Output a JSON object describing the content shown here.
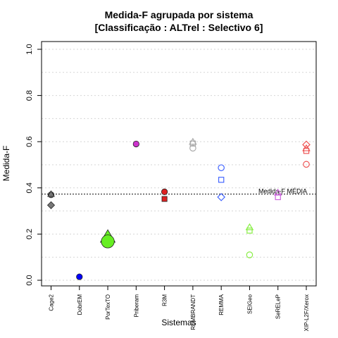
{
  "chart_data": {
    "type": "scatter",
    "title": "Medida-F agrupada por sistema",
    "subtitle": "[Classificação : ALTrel : Selectivo 6]",
    "xlabel": "Sistemas",
    "ylabel": "Medida-F",
    "ylim": [
      0,
      1.0
    ],
    "yticks": [
      "0.0",
      "0.2",
      "0.4",
      "0.6",
      "0.8",
      "1.0"
    ],
    "grid": true,
    "categories": [
      "Cage2",
      "DobrEM",
      "PorTexTO",
      "Priberam",
      "R3M",
      "REMBRANDT",
      "REMMA",
      "SEIGeo",
      "SeRELeP",
      "XIP-L2F/Xerox"
    ],
    "mean_line": {
      "label": "Medida-F MÉDIA",
      "value": 0.373
    },
    "points": [
      {
        "system": "Cage2",
        "shape": "circle",
        "filled": true,
        "color": "#777777",
        "value": 0.37
      },
      {
        "system": "Cage2",
        "shape": "triangle",
        "filled": true,
        "color": "#777777",
        "value": 0.372
      },
      {
        "system": "Cage2",
        "shape": "diamond",
        "filled": true,
        "color": "#777777",
        "value": 0.325
      },
      {
        "system": "DobrEM",
        "shape": "circle",
        "filled": true,
        "color": "#0000ff",
        "value": 0.015
      },
      {
        "system": "PorTexTO",
        "shape": "triangle",
        "filled": true,
        "color": "#66ee22",
        "value": 0.185,
        "size": "large"
      },
      {
        "system": "PorTexTO",
        "shape": "circle",
        "filled": true,
        "color": "#66ee22",
        "value": 0.168,
        "size": "large"
      },
      {
        "system": "Priberam",
        "shape": "circle",
        "filled": true,
        "color": "#cc33cc",
        "value": 0.59
      },
      {
        "system": "R3M",
        "shape": "circle",
        "filled": true,
        "color": "#dd2222",
        "value": 0.383
      },
      {
        "system": "R3M",
        "shape": "square",
        "filled": true,
        "color": "#dd2222",
        "value": 0.352
      },
      {
        "system": "REMBRANDT",
        "shape": "triangle",
        "filled": false,
        "color": "#aaaaaa",
        "value": 0.598
      },
      {
        "system": "REMBRANDT",
        "shape": "square",
        "filled": false,
        "color": "#aaaaaa",
        "value": 0.592
      },
      {
        "system": "REMBRANDT",
        "shape": "circle",
        "filled": false,
        "color": "#aaaaaa",
        "value": 0.572
      },
      {
        "system": "REMMA",
        "shape": "circle",
        "filled": false,
        "color": "#4466ff",
        "value": 0.487
      },
      {
        "system": "REMMA",
        "shape": "square",
        "filled": false,
        "color": "#4466ff",
        "value": 0.435
      },
      {
        "system": "REMMA",
        "shape": "diamond",
        "filled": false,
        "color": "#4466ff",
        "value": 0.36
      },
      {
        "system": "SEIGeo",
        "shape": "triangle",
        "filled": false,
        "color": "#88ee44",
        "value": 0.228
      },
      {
        "system": "SEIGeo",
        "shape": "square",
        "filled": false,
        "color": "#88ee44",
        "value": 0.215
      },
      {
        "system": "SEIGeo",
        "shape": "circle",
        "filled": false,
        "color": "#88ee44",
        "value": 0.11
      },
      {
        "system": "SeRELeP",
        "shape": "triangle",
        "filled": false,
        "color": "#cc66dd",
        "value": 0.378
      },
      {
        "system": "SeRELeP",
        "shape": "square",
        "filled": false,
        "color": "#cc66dd",
        "value": 0.36
      },
      {
        "system": "XIP-L2F/Xerox",
        "shape": "diamond",
        "filled": false,
        "color": "#ee5555",
        "value": 0.587
      },
      {
        "system": "XIP-L2F/Xerox",
        "shape": "triangle",
        "filled": false,
        "color": "#ee5555",
        "value": 0.57
      },
      {
        "system": "XIP-L2F/Xerox",
        "shape": "square",
        "filled": false,
        "color": "#ee5555",
        "value": 0.56
      },
      {
        "system": "XIP-L2F/Xerox",
        "shape": "circle",
        "filled": false,
        "color": "#ee5555",
        "value": 0.502
      }
    ]
  }
}
